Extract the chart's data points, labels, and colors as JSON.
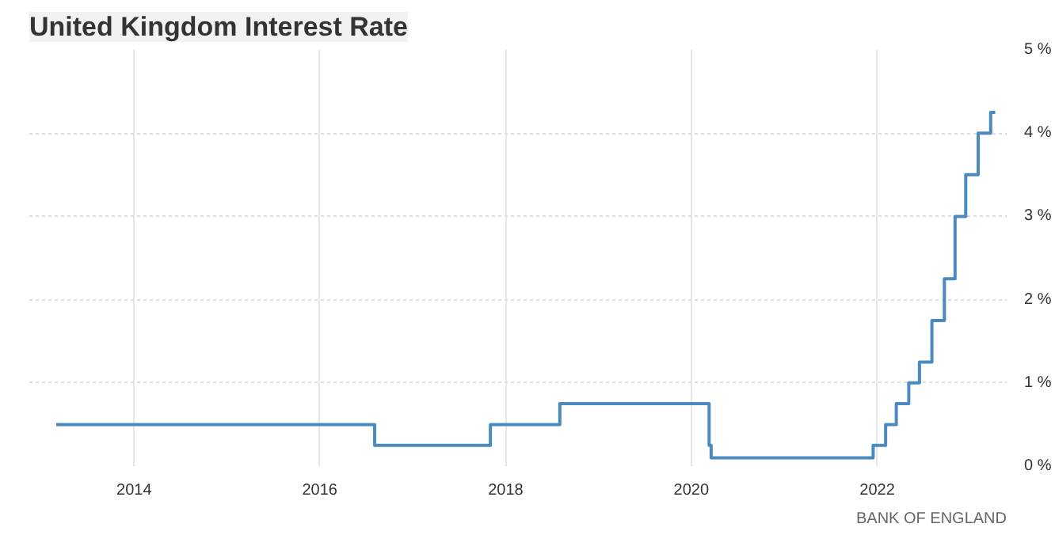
{
  "chart_data": {
    "type": "step",
    "title": "United Kingdom Interest Rate",
    "x": [
      "2013-03-01",
      "2016-08-04",
      "2017-11-02",
      "2018-08-02",
      "2020-03-11",
      "2020-03-19",
      "2021-12-16",
      "2022-02-03",
      "2022-03-17",
      "2022-05-05",
      "2022-06-16",
      "2022-08-04",
      "2022-09-22",
      "2022-11-03",
      "2022-12-15",
      "2023-02-02",
      "2023-03-23",
      "2023-04-10"
    ],
    "series": [
      {
        "color": "#4a8abf",
        "values": [
          0.5,
          0.25,
          0.5,
          0.75,
          0.25,
          0.1,
          0.25,
          0.5,
          0.75,
          1.0,
          1.25,
          1.75,
          2.25,
          3.0,
          3.5,
          4.0,
          4.25,
          4.25
        ]
      }
    ],
    "xlim": [
      "2012-11-15",
      "2023-05-25"
    ],
    "xticks": [
      {
        "value": "2014-01-01",
        "label": "2014"
      },
      {
        "value": "2016-01-01",
        "label": "2016"
      },
      {
        "value": "2018-01-01",
        "label": "2018"
      },
      {
        "value": "2020-01-01",
        "label": "2020"
      },
      {
        "value": "2022-01-01",
        "label": "2022"
      }
    ],
    "ylim": [
      0,
      5
    ],
    "yticks": [
      {
        "value": 0,
        "label": "0 %"
      },
      {
        "value": 1,
        "label": "1 %"
      },
      {
        "value": 2,
        "label": "2 %"
      },
      {
        "value": 3,
        "label": "3 %"
      },
      {
        "value": 4,
        "label": "4 %"
      },
      {
        "value": 5,
        "label": "5 %"
      }
    ],
    "grid": true,
    "annotations": [
      "BANK OF ENGLAND"
    ]
  }
}
